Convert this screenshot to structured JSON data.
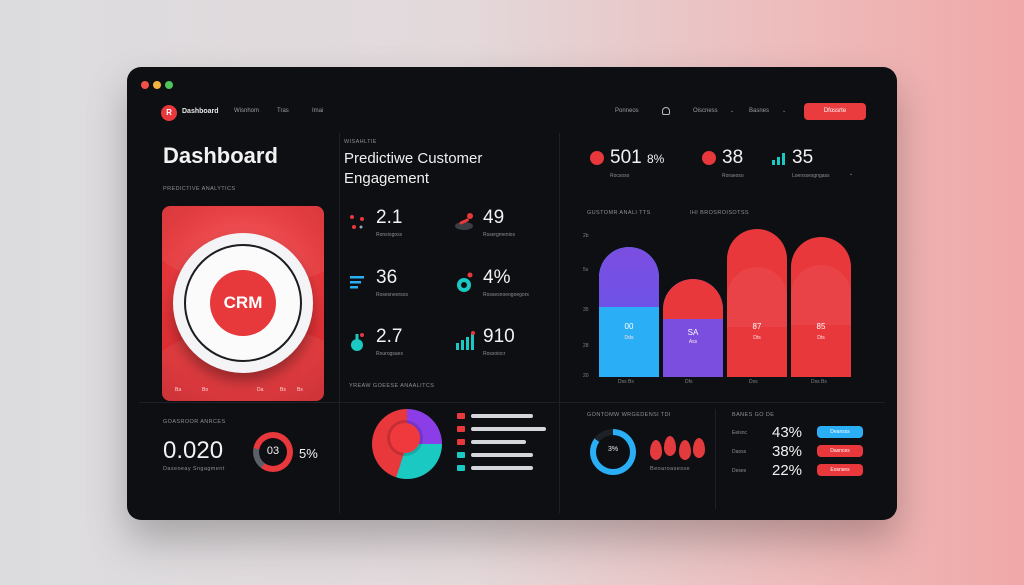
{
  "nav": {
    "brand": "Dashboard",
    "links": [
      "Wisnhom",
      "Tras",
      "Imai"
    ],
    "right_links": [
      "Ponneos",
      "Oiscness",
      "Basnes"
    ],
    "cta": "Dfossrte"
  },
  "page": {
    "title": "Dashboard",
    "subtitle": "Predictive analytics",
    "predictive_kicker": "Wisahltie",
    "predictive_title_line1": "Predictiwe Customer",
    "predictive_title_line2": "Engagement"
  },
  "crm": {
    "label": "CRM",
    "ticks": [
      "Ba",
      "Bo",
      "Da",
      "Bs",
      "Bs"
    ]
  },
  "kpis": [
    {
      "value": "2.1",
      "label": "Ronsiogoss"
    },
    {
      "value": "49",
      "label": "Rssergmenios"
    },
    {
      "value": "36",
      "label": "Rosesneorsos"
    },
    {
      "value": "4%",
      "label": "Rossesnoeogoegors"
    },
    {
      "value": "2.7",
      "label": "Rourogsaes"
    },
    {
      "value": "910",
      "label": "Rossoiocr"
    }
  ],
  "stats": [
    {
      "value": "501",
      "suffix": "8%",
      "label": "Rocsoso"
    },
    {
      "value": "3",
      "suffix": "8",
      "label": "Roraeoso"
    },
    {
      "value": "35",
      "label": "Loenssesgngass"
    }
  ],
  "chart": {
    "title_left": "Gustomr anali tts",
    "title_right": "Ihi Brosroisotss",
    "axis": [
      "2b",
      "5s",
      "35",
      "28",
      "20"
    ],
    "x_labels": [
      "Dss Bs",
      "Dfs",
      "Dss",
      "Dss Bs"
    ],
    "bars": [
      {
        "value": "00",
        "label": "Dds"
      },
      {
        "value": "SA",
        "label": "Ass"
      },
      {
        "value": "87",
        "label": "Dts"
      },
      {
        "value": "85",
        "label": "Dts"
      }
    ]
  },
  "bottom_left": {
    "title": "Goasroor anrces",
    "value": "0.020",
    "label": "Daseoeay Sngagment",
    "donut_value": "03",
    "donut_pct": "5%"
  },
  "bottom_mid": {
    "title": "Yreaw Goeese anaalitcs"
  },
  "bottom_right_chart": {
    "title": "Gontomw wrgedensi tdi",
    "donut_value": "3%",
    "label": "Beoaroasesse"
  },
  "pct_list": {
    "title": "Banes go de",
    "rows": [
      {
        "label": "Eeisnc",
        "value": "43%",
        "pill": "Deansss",
        "color": "#2aaef5"
      },
      {
        "label": "Daoss",
        "value": "38%",
        "pill": "Dasnces",
        "color": "#e8383c"
      },
      {
        "label": "Deses",
        "value": "22%",
        "pill": "Eosnses",
        "color": "#e8383c"
      }
    ]
  }
}
